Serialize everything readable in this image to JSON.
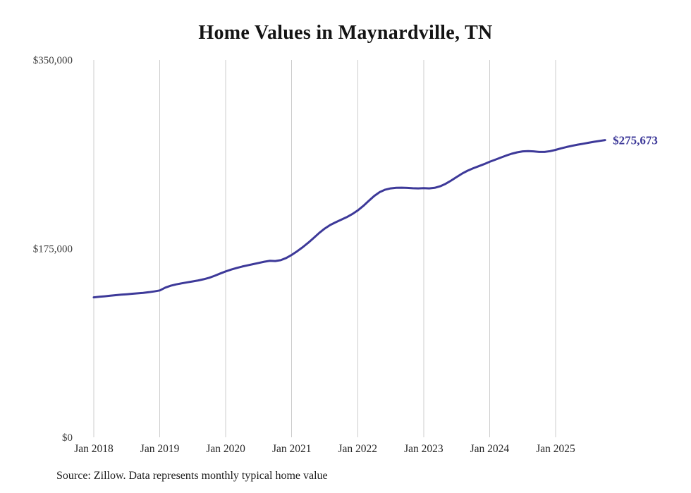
{
  "chart_data": {
    "type": "line",
    "title": "Home Values in Maynardville, TN",
    "source": "Source: Zillow. Data represents monthly typical home value",
    "end_label": "$275,673",
    "latest_value": 275673,
    "line_color": "#3d3999",
    "grid_color": "#cccccc",
    "background": "#ffffff",
    "grid": "vertical-only",
    "legend_position": "none",
    "xlabel": "",
    "ylabel": "",
    "ylim": [
      0,
      350000
    ],
    "y_ticks": [
      {
        "label": "$350,000",
        "value": 350000
      },
      {
        "label": "$175,000",
        "value": 175000
      },
      {
        "label": "$0",
        "value": 0
      }
    ],
    "x_tick_labels": [
      "Jan 2018",
      "Jan 2019",
      "Jan 2020",
      "Jan 2021",
      "Jan 2022",
      "Jan 2023",
      "Jan 2024",
      "Jan 2025"
    ],
    "months": [
      "Jan 2018",
      "Feb 2018",
      "Mar 2018",
      "Apr 2018",
      "May 2018",
      "Jun 2018",
      "Jul 2018",
      "Aug 2018",
      "Sep 2018",
      "Oct 2018",
      "Nov 2018",
      "Dec 2018",
      "Jan 2019",
      "Feb 2019",
      "Mar 2019",
      "Apr 2019",
      "May 2019",
      "Jun 2019",
      "Jul 2019",
      "Aug 2019",
      "Sep 2019",
      "Oct 2019",
      "Nov 2019",
      "Dec 2019",
      "Jan 2020",
      "Feb 2020",
      "Mar 2020",
      "Apr 2020",
      "May 2020",
      "Jun 2020",
      "Jul 2020",
      "Aug 2020",
      "Sep 2020",
      "Oct 2020",
      "Nov 2020",
      "Dec 2020",
      "Jan 2021",
      "Feb 2021",
      "Mar 2021",
      "Apr 2021",
      "May 2021",
      "Jun 2021",
      "Jul 2021",
      "Aug 2021",
      "Sep 2021",
      "Oct 2021",
      "Nov 2021",
      "Dec 2021",
      "Jan 2022",
      "Feb 2022",
      "Mar 2022",
      "Apr 2022",
      "May 2022",
      "Jun 2022",
      "Jul 2022",
      "Aug 2022",
      "Sep 2022",
      "Oct 2022",
      "Nov 2022",
      "Dec 2022",
      "Jan 2023",
      "Feb 2023",
      "Mar 2023",
      "Apr 2023",
      "May 2023",
      "Jun 2023",
      "Jul 2023",
      "Aug 2023",
      "Sep 2023",
      "Oct 2023",
      "Nov 2023",
      "Dec 2023",
      "Jan 2024",
      "Feb 2024",
      "Mar 2024",
      "Apr 2024",
      "May 2024",
      "Jun 2024",
      "Jul 2024",
      "Aug 2024",
      "Sep 2024",
      "Oct 2024",
      "Nov 2024",
      "Dec 2024",
      "Jan 2025",
      "Feb 2025",
      "Mar 2025",
      "Apr 2025",
      "May 2025",
      "Jun 2025",
      "Jul 2025",
      "Aug 2025",
      "Sep 2025",
      "Oct 2025"
    ],
    "values": [
      129800,
      130300,
      130800,
      131300,
      131800,
      132300,
      132700,
      133100,
      133500,
      134000,
      134600,
      135300,
      136200,
      138800,
      140600,
      141800,
      142800,
      143700,
      144600,
      145500,
      146600,
      148000,
      149800,
      151900,
      153900,
      155600,
      157100,
      158400,
      159500,
      160600,
      161700,
      162800,
      163700,
      163500,
      164300,
      166300,
      169200,
      172600,
      176300,
      180400,
      184900,
      189500,
      193600,
      196900,
      199500,
      201800,
      204200,
      207000,
      210400,
      214500,
      219200,
      223800,
      227400,
      229700,
      230900,
      231400,
      231500,
      231300,
      231000,
      230900,
      231100,
      230900,
      231400,
      232800,
      235100,
      238100,
      241400,
      244600,
      247300,
      249500,
      251400,
      253400,
      255500,
      257400,
      259400,
      261300,
      263000,
      264300,
      265200,
      265500,
      265200,
      264700,
      264700,
      265400,
      266600,
      268000,
      269300,
      270400,
      271400,
      272300,
      273200,
      274100,
      274900,
      275673
    ]
  }
}
